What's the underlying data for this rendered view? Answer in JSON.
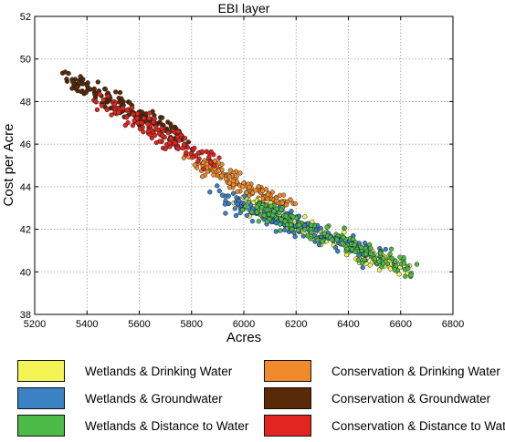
{
  "chart_data": {
    "type": "scatter",
    "title": "EBI layer",
    "xlabel": "Acres",
    "ylabel": "Cost per Acre",
    "xlim": [
      5200,
      6800
    ],
    "ylim": [
      38,
      52
    ],
    "xticks": [
      5200,
      5400,
      5600,
      5800,
      6000,
      6200,
      6400,
      6600,
      6800
    ],
    "yticks": [
      38,
      40,
      42,
      44,
      46,
      48,
      50,
      52
    ],
    "grid": true,
    "legend_position": "bottom",
    "series": [
      {
        "name": "Wetlands & Drinking Water",
        "color": "#f4f454",
        "trend": {
          "x_start": 6000,
          "x_end": 6600,
          "y_start": 43.3,
          "y_end": 40.2,
          "spread_x": 55,
          "spread_y": 0.45
        },
        "n_points": 170
      },
      {
        "name": "Conservation & Drinking Water",
        "color": "#f08a2c",
        "trend": {
          "x_start": 5820,
          "x_end": 6160,
          "y_start": 45.2,
          "y_end": 43.1,
          "spread_x": 45,
          "spread_y": 0.35
        },
        "n_points": 150
      },
      {
        "name": "Wetlands & Groundwater",
        "color": "#3b82c4",
        "trend": {
          "x_start": 5900,
          "x_end": 6520,
          "y_start": 43.6,
          "y_end": 40.7,
          "spread_x": 55,
          "spread_y": 0.45
        },
        "n_points": 170
      },
      {
        "name": "Conservation & Groundwater",
        "color": "#5a2a08",
        "trend": {
          "x_start": 5320,
          "x_end": 5780,
          "y_start": 49.1,
          "y_end": 46.2,
          "spread_x": 40,
          "spread_y": 0.4
        },
        "n_points": 150
      },
      {
        "name": "Wetlands & Distance to Water",
        "color": "#4cbb48",
        "trend": {
          "x_start": 6020,
          "x_end": 6640,
          "y_start": 43.1,
          "y_end": 40.1,
          "spread_x": 55,
          "spread_y": 0.45
        },
        "n_points": 170
      },
      {
        "name": "Conservation & Distance to Water",
        "color": "#e2261f",
        "trend": {
          "x_start": 5450,
          "x_end": 5880,
          "y_start": 48.0,
          "y_end": 45.2,
          "spread_x": 45,
          "spread_y": 0.4
        },
        "n_points": 150
      }
    ]
  }
}
